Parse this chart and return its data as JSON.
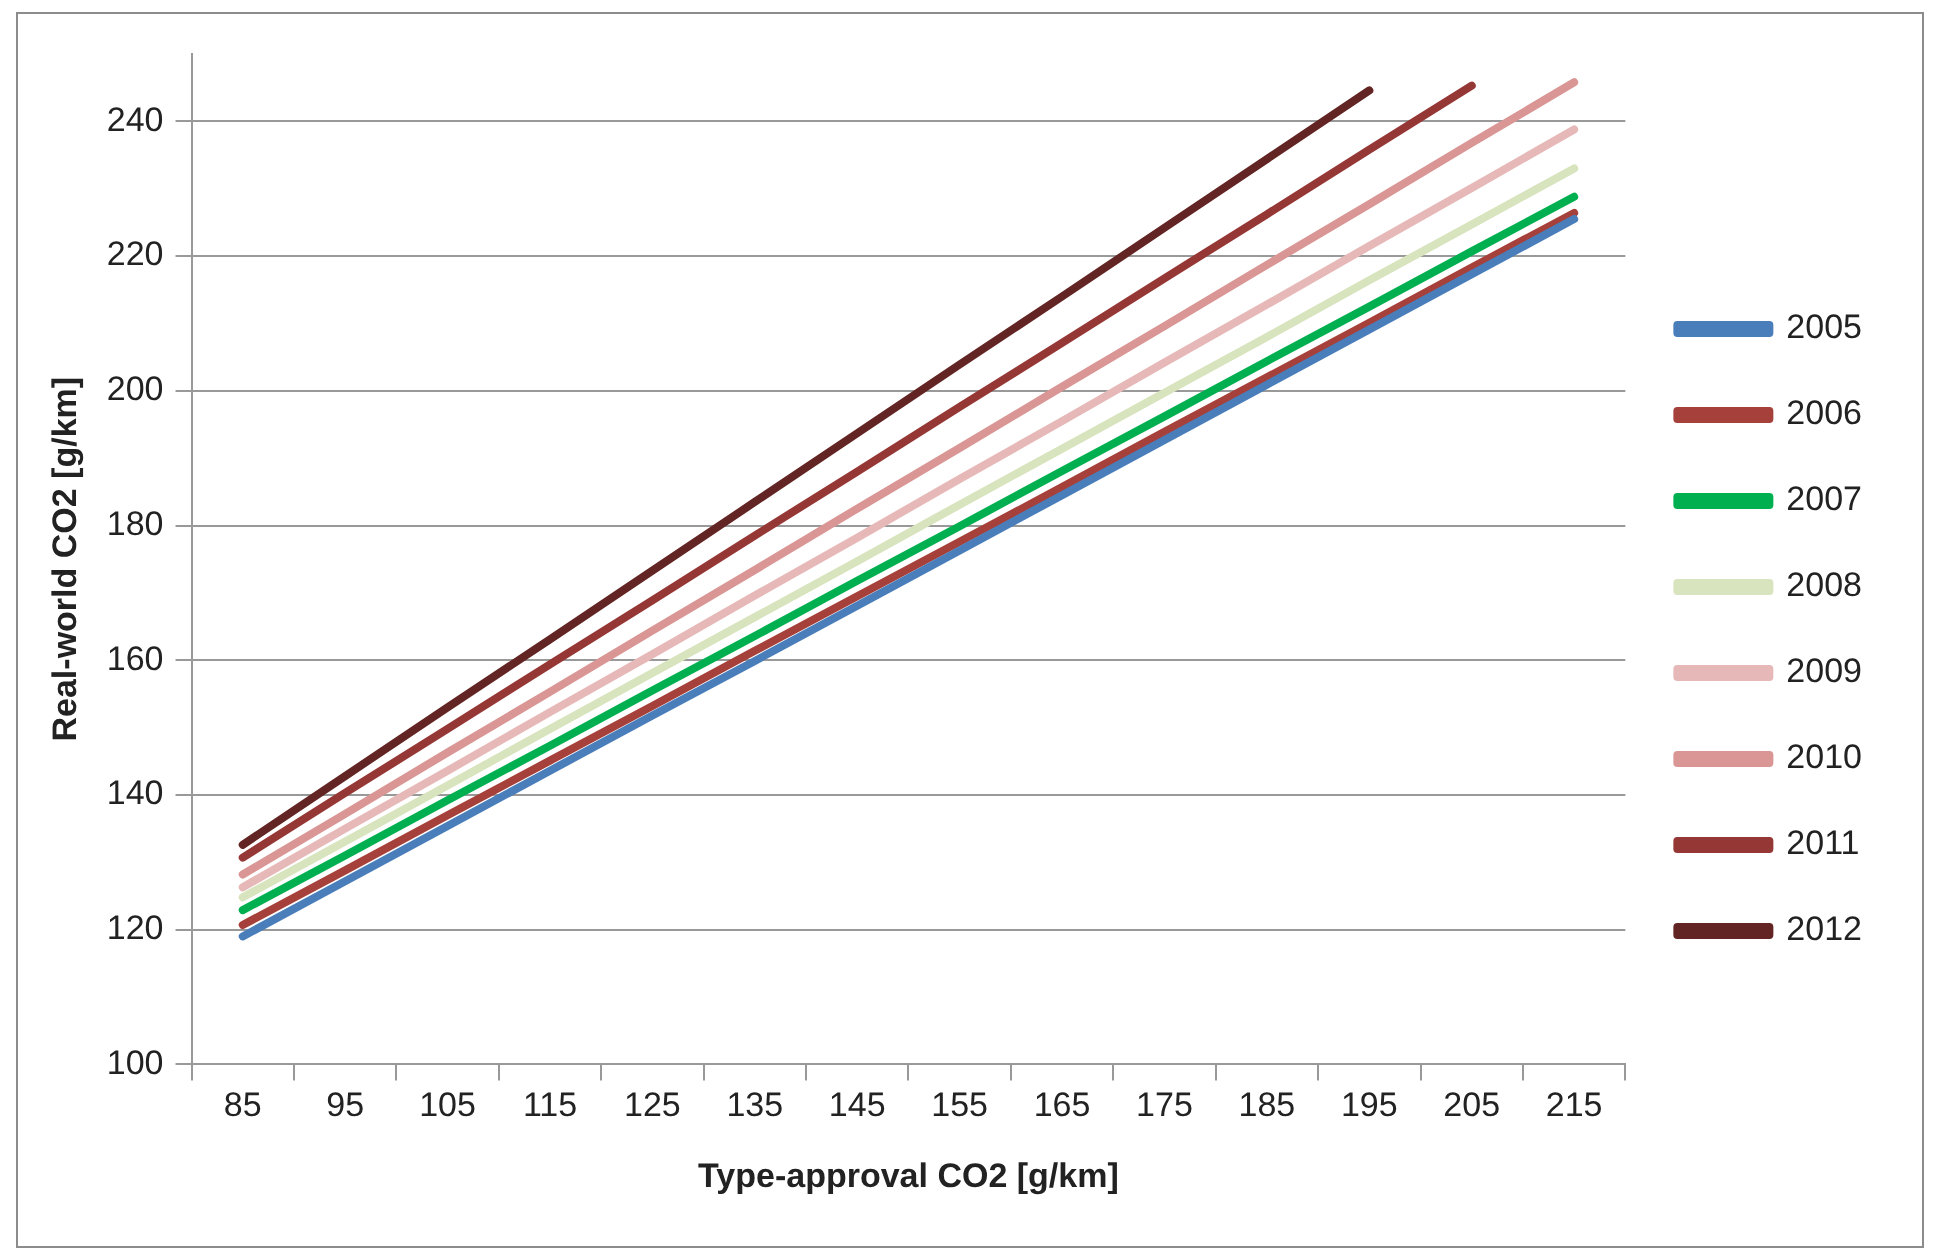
{
  "chart_data": {
    "type": "line",
    "xlabel": "Type-approval CO2 [g/km]",
    "ylabel": "Real-world CO2 [g/km]",
    "categories": [
      "85",
      "95",
      "105",
      "115",
      "125",
      "135",
      "145",
      "155",
      "165",
      "175",
      "185",
      "195",
      "205",
      "215"
    ],
    "ylim": [
      100,
      250
    ],
    "yticks": [
      100,
      120,
      140,
      160,
      180,
      200,
      220,
      240
    ],
    "grid": "y",
    "legend": "right",
    "marker": "none",
    "line_style": "solid",
    "series": [
      {
        "name": "2005",
        "color": "#4a7ebb",
        "values": [
          119,
          127.2,
          135.4,
          143.6,
          151.8,
          159.9,
          168.1,
          176.3,
          184.5,
          192.7,
          200.9,
          209.1,
          217.3,
          225.5
        ]
      },
      {
        "name": "2006",
        "color": "#a5403a",
        "values": [
          120.7,
          128.8,
          137.0,
          145.1,
          153.2,
          161.4,
          169.5,
          177.6,
          185.7,
          193.9,
          202.0,
          210.1,
          218.3,
          226.4
        ]
      },
      {
        "name": "2007",
        "color": "#00b050",
        "values": [
          122.9,
          131.0,
          139.2,
          147.3,
          155.5,
          163.6,
          171.8,
          179.9,
          188.1,
          196.2,
          204.4,
          212.5,
          220.7,
          228.8
        ]
      },
      {
        "name": "2008",
        "color": "#d7e4bd",
        "values": [
          124.8,
          133.1,
          141.4,
          149.8,
          158.1,
          166.4,
          174.7,
          183.1,
          191.4,
          199.7,
          208.0,
          216.4,
          224.7,
          233.0
        ]
      },
      {
        "name": "2009",
        "color": "#e6b9b8",
        "values": [
          126.3,
          135.0,
          143.6,
          152.3,
          160.9,
          169.6,
          178.2,
          186.9,
          195.5,
          204.2,
          212.8,
          221.5,
          230.1,
          238.8
        ]
      },
      {
        "name": "2010",
        "color": "#d99694",
        "values": [
          128.2,
          137.2,
          146.3,
          155.3,
          164.4,
          173.4,
          182.5,
          191.5,
          200.6,
          209.6,
          218.7,
          227.7,
          236.8,
          245.8
        ]
      },
      {
        "name": "2011",
        "color": "#953735",
        "values": [
          130.7,
          140.3,
          149.8,
          159.4,
          168.9,
          178.5,
          188.0,
          197.6,
          207.1,
          216.7,
          226.2,
          235.8,
          245.3,
          null
        ]
      },
      {
        "name": "2012",
        "color": "#632523",
        "values": [
          132.6,
          142.8,
          153.0,
          163.1,
          173.3,
          183.5,
          193.7,
          203.9,
          214.0,
          224.2,
          234.4,
          244.6,
          null,
          null
        ]
      }
    ]
  }
}
